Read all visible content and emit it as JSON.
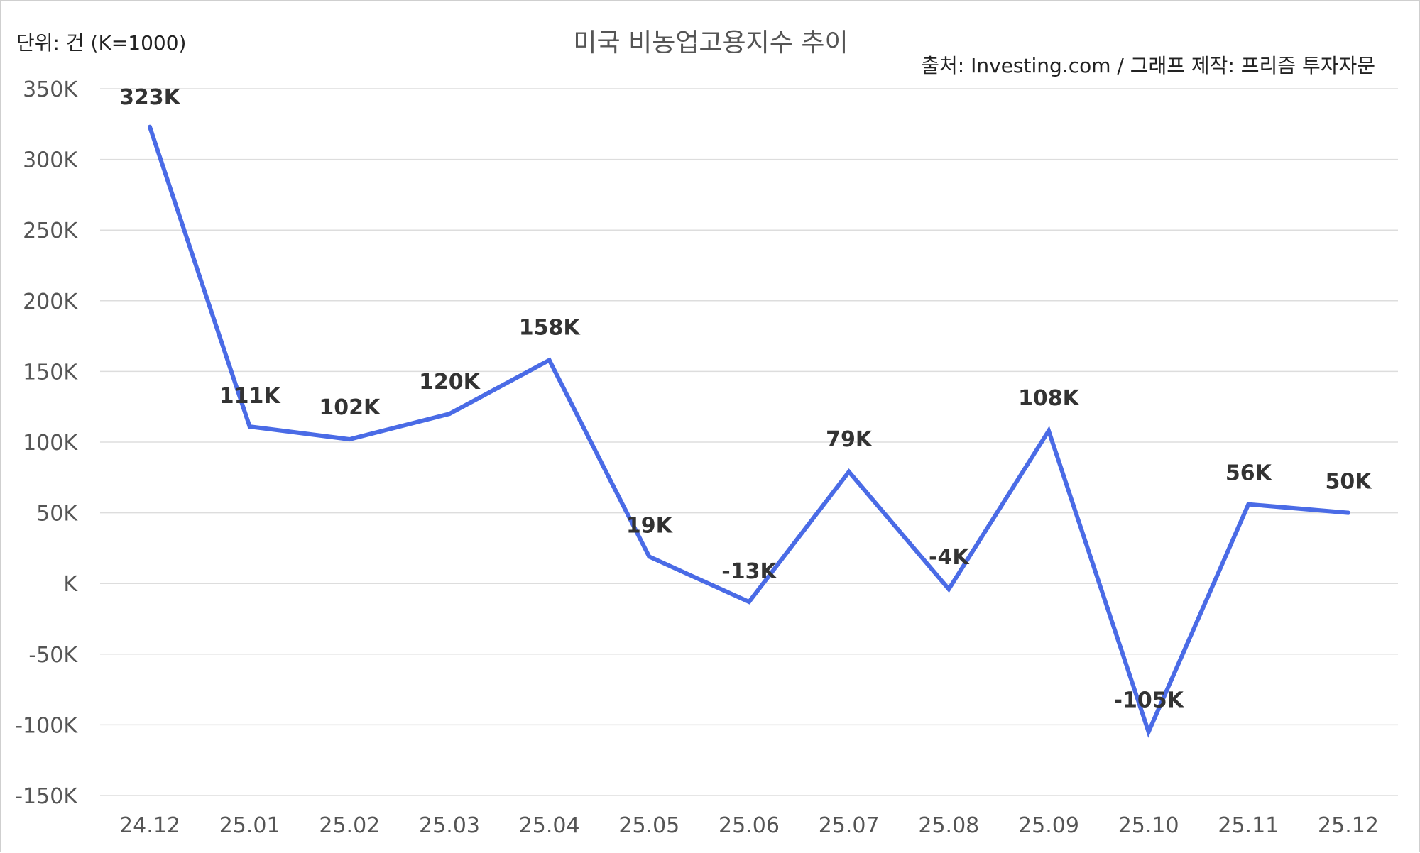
{
  "header": {
    "unit": "단위: 건 (K=1000)",
    "title": "미국 비농업고용지수 추이",
    "source": "출처: Investing.com / 그래프 제작: 프리즘 투자자문"
  },
  "chart_data": {
    "type": "line",
    "title": "미국 비농업고용지수 추이",
    "xlabel": "",
    "ylabel": "",
    "categories": [
      "24.12",
      "25.01",
      "25.02",
      "25.03",
      "25.04",
      "25.05",
      "25.06",
      "25.07",
      "25.08",
      "25.09",
      "25.10",
      "25.11",
      "25.12"
    ],
    "series": [
      {
        "values": [
          323,
          111,
          102,
          120,
          158,
          19,
          -13,
          79,
          -4,
          108,
          -105,
          56,
          50
        ],
        "data_labels": [
          "323K",
          "111K",
          "102K",
          "120K",
          "158K",
          "19K",
          "-13K",
          "79K",
          "-4K",
          "108K",
          "-105K",
          "56K",
          "50K"
        ],
        "color": "#4a6be6"
      }
    ],
    "ylim": [
      -150,
      350
    ],
    "yticks": [
      350,
      300,
      250,
      200,
      150,
      100,
      50,
      0,
      -50,
      -100,
      -150
    ],
    "ytick_labels": [
      "350K",
      "300K",
      "250K",
      "200K",
      "150K",
      "100K",
      "50K",
      "K",
      "-50K",
      "-100K",
      "-150K"
    ],
    "grid": true,
    "gridline_color": "#dddddd",
    "legend": "none"
  }
}
